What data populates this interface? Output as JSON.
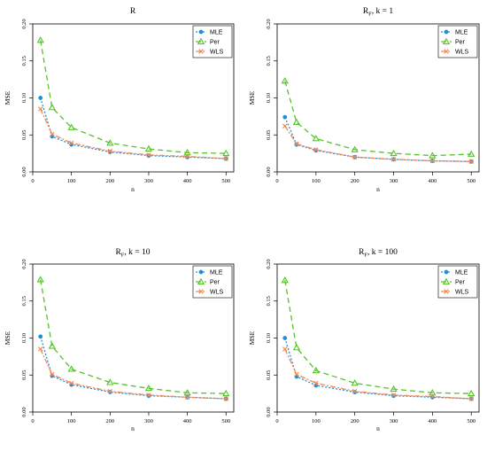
{
  "chart_data": [
    {
      "type": "line",
      "title": "R",
      "title_subscript": "",
      "title_suffix": "",
      "xlabel": "n",
      "ylabel": "MSE",
      "xlim": [
        0,
        520
      ],
      "ylim": [
        0,
        0.2
      ],
      "xticks": [
        "0",
        "100",
        "200",
        "300",
        "400",
        "500"
      ],
      "yticks": [
        "0.00",
        "0.05",
        "0.10",
        "0.15",
        "0.20"
      ],
      "legend_position": "top-right",
      "x": [
        20,
        50,
        100,
        200,
        300,
        400,
        500
      ],
      "series": [
        {
          "name": "MLE",
          "color": "#1f8fd8",
          "marker": "circle",
          "dash": "2,2",
          "values": [
            0.1,
            0.048,
            0.037,
            0.027,
            0.022,
            0.02,
            0.018
          ]
        },
        {
          "name": "Per",
          "color": "#53c425",
          "marker": "triangle",
          "dash": "6,4",
          "values": [
            0.178,
            0.087,
            0.06,
            0.039,
            0.031,
            0.026,
            0.025
          ]
        },
        {
          "name": "WLS",
          "color": "#f08a55",
          "marker": "cross",
          "dash": "6,2,2,2",
          "values": [
            0.085,
            0.051,
            0.039,
            0.028,
            0.023,
            0.021,
            0.018
          ]
        }
      ]
    },
    {
      "type": "line",
      "title": "R",
      "title_subscript": "F",
      "title_suffix": ", k = 1",
      "xlabel": "n",
      "ylabel": "MSE",
      "xlim": [
        0,
        520
      ],
      "ylim": [
        0,
        0.2
      ],
      "xticks": [
        "0",
        "100",
        "200",
        "300",
        "400",
        "500"
      ],
      "yticks": [
        "0.00",
        "0.05",
        "0.10",
        "0.15",
        "0.20"
      ],
      "legend_position": "top-right",
      "x": [
        20,
        50,
        100,
        200,
        300,
        400,
        500
      ],
      "series": [
        {
          "name": "MLE",
          "color": "#1f8fd8",
          "marker": "circle",
          "dash": "2,2",
          "values": [
            0.074,
            0.037,
            0.029,
            0.02,
            0.017,
            0.015,
            0.014
          ]
        },
        {
          "name": "Per",
          "color": "#53c425",
          "marker": "triangle",
          "dash": "6,4",
          "values": [
            0.123,
            0.067,
            0.045,
            0.03,
            0.025,
            0.022,
            0.024
          ]
        },
        {
          "name": "WLS",
          "color": "#f08a55",
          "marker": "cross",
          "dash": "6,2,2,2",
          "values": [
            0.062,
            0.038,
            0.03,
            0.02,
            0.017,
            0.015,
            0.014
          ]
        }
      ]
    },
    {
      "type": "line",
      "title": "R",
      "title_subscript": "F",
      "title_suffix": ", k = 10",
      "xlabel": "n",
      "ylabel": "MSE",
      "xlim": [
        0,
        520
      ],
      "ylim": [
        0,
        0.2
      ],
      "xticks": [
        "0",
        "100",
        "200",
        "300",
        "400",
        "500"
      ],
      "yticks": [
        "0.00",
        "0.05",
        "0.10",
        "0.15",
        "0.20"
      ],
      "legend_position": "top-right",
      "x": [
        20,
        50,
        100,
        200,
        300,
        400,
        500
      ],
      "series": [
        {
          "name": "MLE",
          "color": "#1f8fd8",
          "marker": "circle",
          "dash": "2,2",
          "values": [
            0.102,
            0.049,
            0.037,
            0.027,
            0.022,
            0.02,
            0.018
          ]
        },
        {
          "name": "Per",
          "color": "#53c425",
          "marker": "triangle",
          "dash": "6,4",
          "values": [
            0.179,
            0.089,
            0.058,
            0.04,
            0.032,
            0.026,
            0.025
          ]
        },
        {
          "name": "WLS",
          "color": "#f08a55",
          "marker": "cross",
          "dash": "6,2,2,2",
          "values": [
            0.085,
            0.051,
            0.039,
            0.028,
            0.023,
            0.02,
            0.018
          ]
        }
      ]
    },
    {
      "type": "line",
      "title": "R",
      "title_subscript": "F",
      "title_suffix": ", k = 100",
      "xlabel": "n",
      "ylabel": "MSE",
      "xlim": [
        0,
        520
      ],
      "ylim": [
        0,
        0.2
      ],
      "xticks": [
        "0",
        "100",
        "200",
        "300",
        "400",
        "500"
      ],
      "yticks": [
        "0.00",
        "0.05",
        "0.10",
        "0.15",
        "0.20"
      ],
      "legend_position": "top-right",
      "x": [
        20,
        50,
        100,
        200,
        300,
        400,
        500
      ],
      "series": [
        {
          "name": "MLE",
          "color": "#1f8fd8",
          "marker": "circle",
          "dash": "2,2",
          "values": [
            0.1,
            0.048,
            0.036,
            0.027,
            0.022,
            0.02,
            0.018
          ]
        },
        {
          "name": "Per",
          "color": "#53c425",
          "marker": "triangle",
          "dash": "6,4",
          "values": [
            0.178,
            0.087,
            0.056,
            0.039,
            0.031,
            0.026,
            0.025
          ]
        },
        {
          "name": "WLS",
          "color": "#f08a55",
          "marker": "cross",
          "dash": "6,2,2,2",
          "values": [
            0.085,
            0.051,
            0.039,
            0.028,
            0.023,
            0.021,
            0.018
          ]
        }
      ]
    }
  ]
}
